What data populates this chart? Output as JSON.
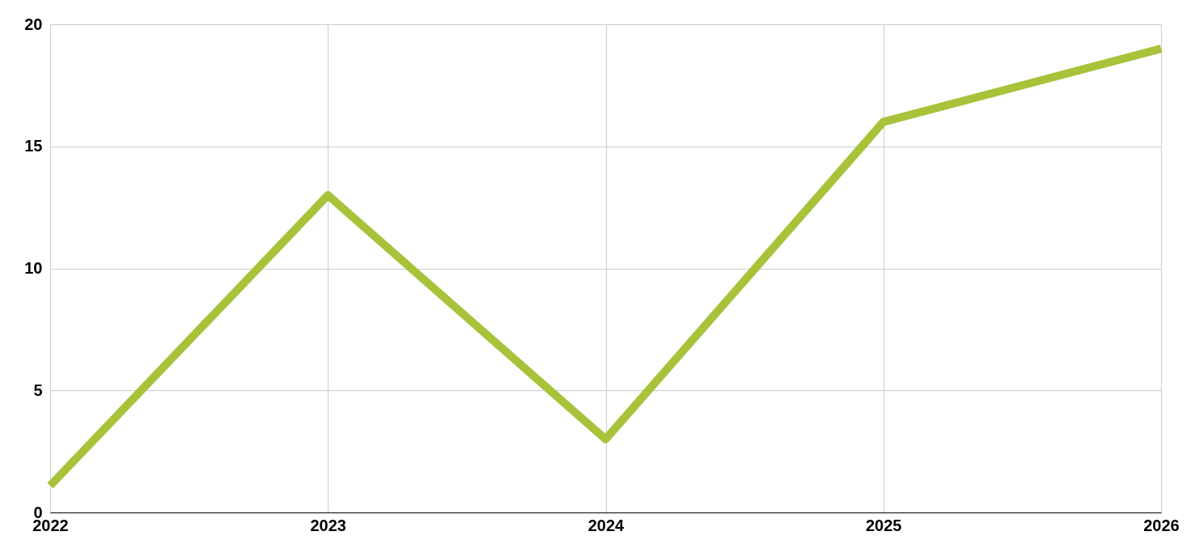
{
  "chart_data": {
    "type": "line",
    "categories": [
      "2022",
      "2023",
      "2024",
      "2025",
      "2026"
    ],
    "series": [
      {
        "color": "#a8c23a",
        "values": [
          1.1,
          13,
          3,
          16,
          19
        ]
      }
    ],
    "ylim": [
      0,
      20
    ],
    "yticks": [
      0,
      5,
      10,
      15,
      20
    ],
    "grid": true,
    "marker": "none",
    "line_style": "solid"
  }
}
